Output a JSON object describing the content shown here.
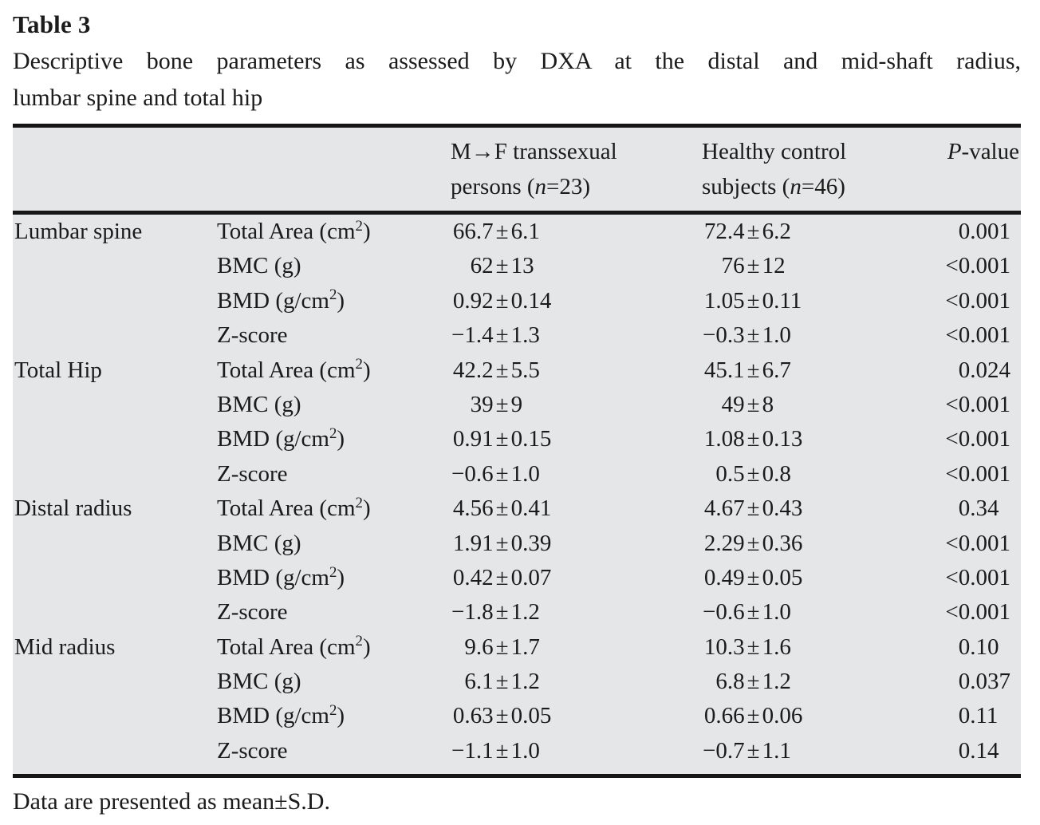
{
  "paper": {
    "title": "Table 3",
    "caption": "Descriptive bone parameters as assessed by DXA at the distal and mid-shaft radius,\nlumbar spine and total hip",
    "footnote": "Data are presented as mean±S.D."
  },
  "colors": {
    "table_background": "#e5e6e7",
    "rule": "#161616",
    "text": "#1b1b1b"
  },
  "table": {
    "columns": [
      {
        "id": "group",
        "line1": "",
        "line2": ""
      },
      {
        "id": "parameter",
        "line1": "",
        "line2": ""
      },
      {
        "id": "mf",
        "line1": "M→F transsexual",
        "line2": "persons (*n*=23)"
      },
      {
        "id": "control",
        "line1": "Healthy control",
        "line2": "subjects (*n*=46)"
      },
      {
        "id": "pvalue",
        "line1": "*P*-value",
        "line2": ""
      }
    ],
    "sections": [
      {
        "name": "Lumbar spine",
        "rows": [
          {
            "parameter": "Total Area (cm^2)",
            "mf": "66.7±6.1",
            "control": "72.4±6.2",
            "p": "0.001"
          },
          {
            "parameter": "BMC (g)",
            "mf": "62±13",
            "control": "76±12",
            "p": "<0.001"
          },
          {
            "parameter": "BMD (g/cm^2)",
            "mf": "0.92±0.14",
            "control": "1.05±0.11",
            "p": "<0.001"
          },
          {
            "parameter": "Z-score",
            "mf": "−1.4±1.3",
            "control": "−0.3±1.0",
            "p": "<0.001"
          }
        ]
      },
      {
        "name": "Total Hip",
        "rows": [
          {
            "parameter": "Total Area (cm^2)",
            "mf": "42.2±5.5",
            "control": "45.1±6.7",
            "p": "0.024"
          },
          {
            "parameter": "BMC (g)",
            "mf": "39±9",
            "control": "49±8",
            "p": "<0.001"
          },
          {
            "parameter": "BMD (g/cm^2)",
            "mf": "0.91±0.15",
            "control": "1.08±0.13",
            "p": "<0.001"
          },
          {
            "parameter": "Z-score",
            "mf": "−0.6±1.0",
            "control": "0.5±0.8",
            "p": "<0.001"
          }
        ]
      },
      {
        "name": "Distal radius",
        "rows": [
          {
            "parameter": "Total Area (cm^2)",
            "mf": "4.56±0.41",
            "control": "4.67±0.43",
            "p": "0.34"
          },
          {
            "parameter": "BMC (g)",
            "mf": "1.91±0.39",
            "control": "2.29±0.36",
            "p": "<0.001"
          },
          {
            "parameter": "BMD (g/cm^2)",
            "mf": "0.42±0.07",
            "control": "0.49±0.05",
            "p": "<0.001"
          },
          {
            "parameter": "Z-score",
            "mf": "−1.8±1.2",
            "control": "−0.6±1.0",
            "p": "<0.001"
          }
        ]
      },
      {
        "name": "Mid radius",
        "rows": [
          {
            "parameter": "Total Area (cm^2)",
            "mf": "9.6±1.7",
            "control": "10.3±1.6",
            "p": "0.10"
          },
          {
            "parameter": "BMC (g)",
            "mf": "6.1±1.2",
            "control": "6.8±1.2",
            "p": "0.037"
          },
          {
            "parameter": "BMD (g/cm^2)",
            "mf": "0.63±0.05",
            "control": "0.66±0.06",
            "p": "0.11"
          },
          {
            "parameter": "Z-score",
            "mf": "−1.1±1.0",
            "control": "−0.7±1.1",
            "p": "0.14"
          }
        ]
      }
    ]
  }
}
